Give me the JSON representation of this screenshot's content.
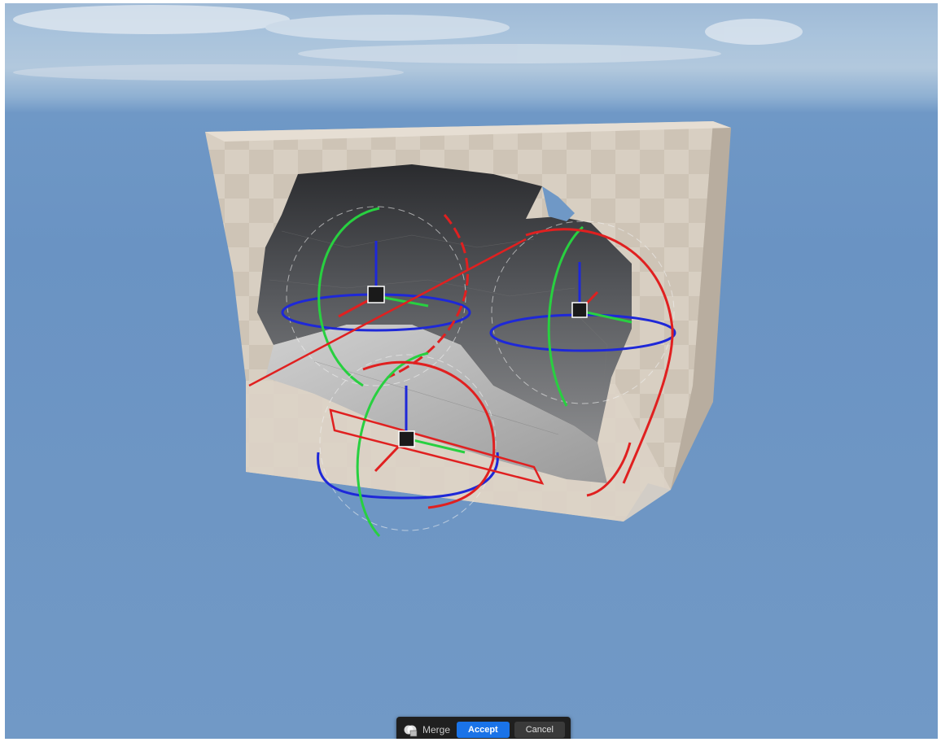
{
  "viewport": {
    "name": "3D viewport"
  },
  "toolbar": {
    "tool_icon": "merge-tool-icon",
    "tool_label": "Merge",
    "accept_label": "Accept",
    "cancel_label": "Cancel"
  },
  "colors": {
    "gizmo_x": "#e02020",
    "gizmo_y": "#28d040",
    "gizmo_z": "#1e28d8",
    "accept_bg": "#1a73e8",
    "toolbar_bg": "#1f1f1f"
  }
}
